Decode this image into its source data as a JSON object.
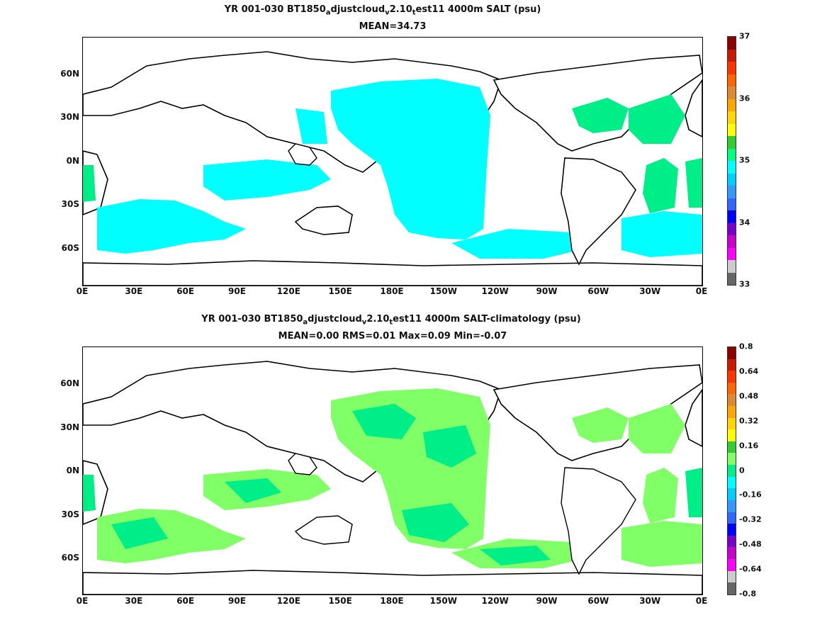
{
  "panel1": {
    "title_prefix": "YR 001-030 BT1850",
    "title_sub_a": "a",
    "title_mid1": "djustcloud",
    "title_sub_v": "v",
    "title_mid2": "2.10",
    "title_sub_t": "t",
    "title_suffix": "est11 4000m SALT (psu)",
    "stats": "MEAN=34.73",
    "colorbar_labels": [
      "37",
      "36",
      "35",
      "34",
      "33"
    ],
    "colorbar_colors": [
      "#8b0000",
      "#cc1a00",
      "#ff3300",
      "#ff6600",
      "#e08a30",
      "#ffa500",
      "#ffd700",
      "#ffff00",
      "#33cc33",
      "#00ff80",
      "#00ffff",
      "#00ccff",
      "#3399ff",
      "#3366ff",
      "#0000ff",
      "#7a00cc",
      "#cc00cc",
      "#ff00ff",
      "#cccccc",
      "#666666"
    ],
    "fill_color": "#00ffff",
    "accent_color": "#00ee88"
  },
  "panel2": {
    "title_prefix": "YR 001-030 BT1850",
    "title_sub_a": "a",
    "title_mid1": "djustcloud",
    "title_sub_v": "v",
    "title_mid2": "2.10",
    "title_sub_t": "t",
    "title_suffix": "est11 4000m SALT-climatology (psu)",
    "stats": "MEAN=0.00   RMS=0.01   Max=0.09   Min=-0.07",
    "colorbar_labels": [
      "0.8",
      "0.64",
      "0.48",
      "0.32",
      "0.16",
      "0",
      "-0.16",
      "-0.32",
      "-0.48",
      "-0.64",
      "-0.8"
    ],
    "colorbar_colors": [
      "#8b0000",
      "#cc1a00",
      "#ff3300",
      "#ff6600",
      "#e08a30",
      "#ffa500",
      "#ffd700",
      "#ffff00",
      "#33cc33",
      "#80ff66",
      "#00ee88",
      "#00ffff",
      "#00ccff",
      "#3399ff",
      "#3366ff",
      "#0000ff",
      "#7a00cc",
      "#cc00cc",
      "#ff00ff",
      "#cccccc",
      "#666666"
    ],
    "fill_color": "#80ff66",
    "accent_color": "#00ee88"
  },
  "x_ticks": [
    "0E",
    "30E",
    "60E",
    "90E",
    "120E",
    "150E",
    "180E",
    "150W",
    "120W",
    "90W",
    "60W",
    "30W",
    "0E"
  ],
  "y_ticks": [
    "60N",
    "30N",
    "0N",
    "30S",
    "60S"
  ]
}
